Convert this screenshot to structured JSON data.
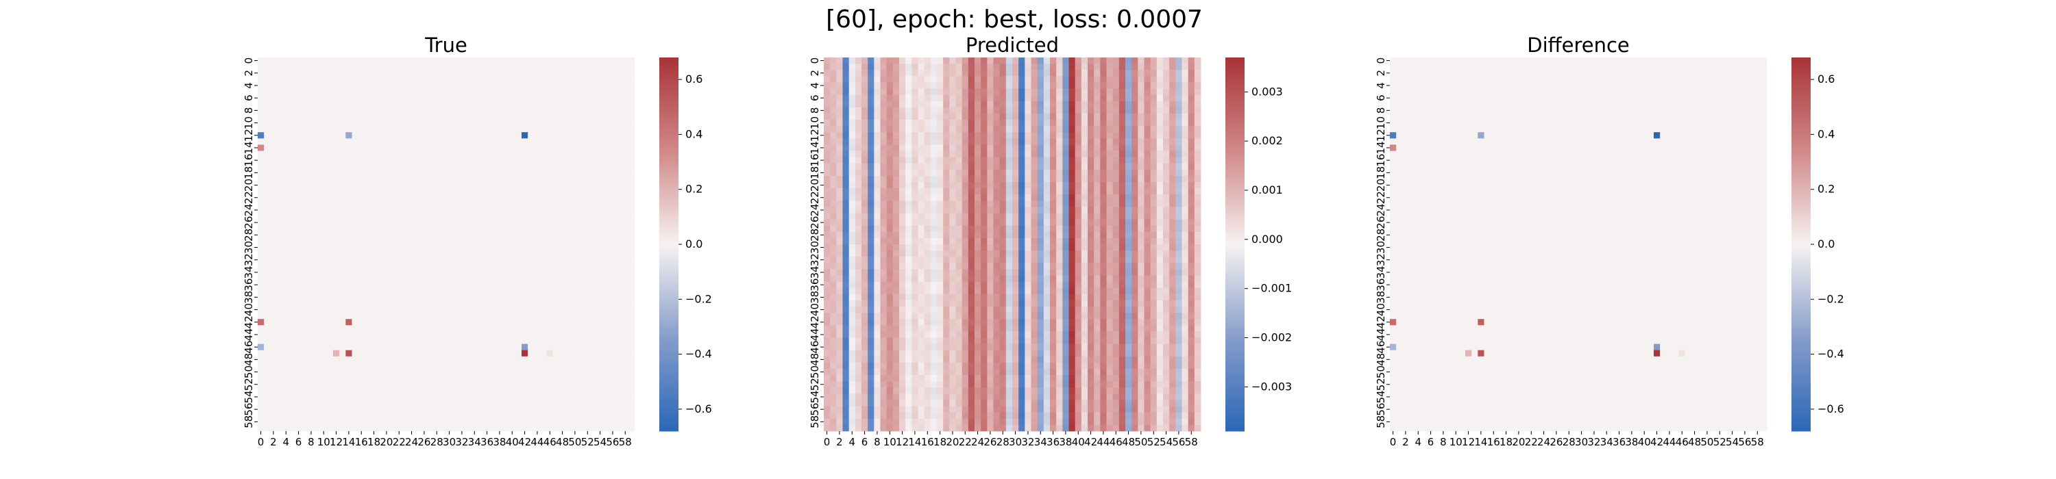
{
  "figure": {
    "title": "[60], epoch: best, loss: 0.0007"
  },
  "chart_data": [
    {
      "type": "heatmap",
      "title": "True",
      "colormap": "vlag",
      "rows": 60,
      "cols": 60,
      "background_value": 0.0,
      "vlim": [
        -0.68,
        0.68
      ],
      "colorbar_ticks": [
        -0.6,
        -0.4,
        -0.2,
        0.0,
        0.2,
        0.4,
        0.6
      ],
      "colorbar_tick_labels": [
        "−0.6",
        "−0.4",
        "−0.2",
        "0.0",
        "0.2",
        "0.4",
        "0.6"
      ],
      "x_tick_labels": [
        "0",
        "2",
        "4",
        "6",
        "8",
        "10",
        "12",
        "14",
        "16",
        "18",
        "20",
        "22",
        "24",
        "26",
        "28",
        "30",
        "32",
        "34",
        "36",
        "38",
        "40",
        "42",
        "44",
        "46",
        "48",
        "50",
        "52",
        "54",
        "56",
        "58"
      ],
      "y_tick_labels": [
        "0",
        "2",
        "4",
        "6",
        "8",
        "10",
        "12",
        "14",
        "16",
        "18",
        "20",
        "22",
        "24",
        "26",
        "28",
        "30",
        "32",
        "34",
        "36",
        "38",
        "40",
        "42",
        "44",
        "46",
        "48",
        "50",
        "52",
        "54",
        "56",
        "58"
      ],
      "cells": [
        {
          "row": 12,
          "col": 0,
          "value": -0.55
        },
        {
          "row": 12,
          "col": 14,
          "value": -0.3
        },
        {
          "row": 12,
          "col": 42,
          "value": -0.68
        },
        {
          "row": 14,
          "col": 0,
          "value": 0.35
        },
        {
          "row": 42,
          "col": 0,
          "value": 0.45
        },
        {
          "row": 42,
          "col": 14,
          "value": 0.5
        },
        {
          "row": 46,
          "col": 0,
          "value": -0.25
        },
        {
          "row": 46,
          "col": 42,
          "value": -0.35
        },
        {
          "row": 47,
          "col": 12,
          "value": 0.2
        },
        {
          "row": 47,
          "col": 14,
          "value": 0.55
        },
        {
          "row": 47,
          "col": 42,
          "value": 0.68
        },
        {
          "row": 47,
          "col": 46,
          "value": 0.05
        }
      ]
    },
    {
      "type": "heatmap",
      "title": "Predicted",
      "colormap": "vlag",
      "rows": 60,
      "cols": 60,
      "vlim": [
        -0.0039,
        0.0037
      ],
      "colorbar_ticks": [
        -0.003,
        -0.002,
        -0.001,
        0.0,
        0.001,
        0.002,
        0.003
      ],
      "colorbar_tick_labels": [
        "−0.003",
        "−0.002",
        "−0.001",
        "0.000",
        "0.001",
        "0.002",
        "0.003"
      ],
      "x_tick_labels": [
        "0",
        "2",
        "4",
        "6",
        "8",
        "10",
        "12",
        "14",
        "16",
        "18",
        "20",
        "22",
        "24",
        "26",
        "28",
        "30",
        "32",
        "34",
        "36",
        "38",
        "40",
        "42",
        "44",
        "46",
        "48",
        "50",
        "52",
        "54",
        "56",
        "58"
      ],
      "y_tick_labels": [
        "0",
        "2",
        "4",
        "6",
        "8",
        "10",
        "12",
        "14",
        "16",
        "18",
        "20",
        "22",
        "24",
        "26",
        "28",
        "30",
        "32",
        "34",
        "36",
        "38",
        "40",
        "42",
        "44",
        "46",
        "48",
        "50",
        "52",
        "54",
        "56",
        "58"
      ],
      "column_values": [
        0.001,
        0.0009,
        0.0007,
        -0.003,
        -0.0003,
        0.0005,
        0.001,
        -0.0028,
        0.0002,
        0.0012,
        0.0016,
        0.0013,
        0.0005,
        -0.0002,
        0.0004,
        0.0002,
        0.0003,
        -0.0003,
        0.0002,
        0.001,
        0.0006,
        0.0007,
        0.0014,
        0.0027,
        0.0016,
        0.0022,
        0.0011,
        0.0017,
        0.0019,
        -0.0008,
        0.001,
        -0.0032,
        0.0004,
        0.0013,
        -0.0018,
        -0.0007,
        0.0016,
        0.0005,
        -0.0021,
        0.0035,
        0.0016,
        0.0004,
        0.0018,
        0.0011,
        0.0021,
        0.0012,
        0.0014,
        0.0025,
        -0.0017,
        0.0019,
        0.0007,
        0.0016,
        0.0011,
        0.0002,
        0.0006,
        0.0013,
        -0.0012,
        0.0003,
        0.0017,
        0.0006
      ]
    },
    {
      "type": "heatmap",
      "title": "Difference",
      "colormap": "vlag",
      "rows": 60,
      "cols": 60,
      "background_value": 0.0,
      "vlim": [
        -0.68,
        0.68
      ],
      "colorbar_ticks": [
        -0.6,
        -0.4,
        -0.2,
        0.0,
        0.2,
        0.4,
        0.6
      ],
      "colorbar_tick_labels": [
        "−0.6",
        "−0.4",
        "−0.2",
        "0.0",
        "0.2",
        "0.4",
        "0.6"
      ],
      "x_tick_labels": [
        "0",
        "2",
        "4",
        "6",
        "8",
        "10",
        "12",
        "14",
        "16",
        "18",
        "20",
        "22",
        "24",
        "26",
        "28",
        "30",
        "32",
        "34",
        "36",
        "38",
        "40",
        "42",
        "44",
        "46",
        "48",
        "50",
        "52",
        "54",
        "56",
        "58"
      ],
      "y_tick_labels": [
        "0",
        "2",
        "4",
        "6",
        "8",
        "10",
        "12",
        "14",
        "16",
        "18",
        "20",
        "22",
        "24",
        "26",
        "28",
        "30",
        "32",
        "34",
        "36",
        "38",
        "40",
        "42",
        "44",
        "46",
        "48",
        "50",
        "52",
        "54",
        "56",
        "58"
      ],
      "cells": [
        {
          "row": 12,
          "col": 0,
          "value": -0.55
        },
        {
          "row": 12,
          "col": 14,
          "value": -0.3
        },
        {
          "row": 12,
          "col": 42,
          "value": -0.68
        },
        {
          "row": 14,
          "col": 0,
          "value": 0.35
        },
        {
          "row": 42,
          "col": 0,
          "value": 0.45
        },
        {
          "row": 42,
          "col": 14,
          "value": 0.5
        },
        {
          "row": 46,
          "col": 0,
          "value": -0.25
        },
        {
          "row": 46,
          "col": 42,
          "value": -0.35
        },
        {
          "row": 47,
          "col": 12,
          "value": 0.2
        },
        {
          "row": 47,
          "col": 14,
          "value": 0.55
        },
        {
          "row": 47,
          "col": 42,
          "value": 0.68
        },
        {
          "row": 47,
          "col": 46,
          "value": 0.05
        }
      ]
    }
  ]
}
